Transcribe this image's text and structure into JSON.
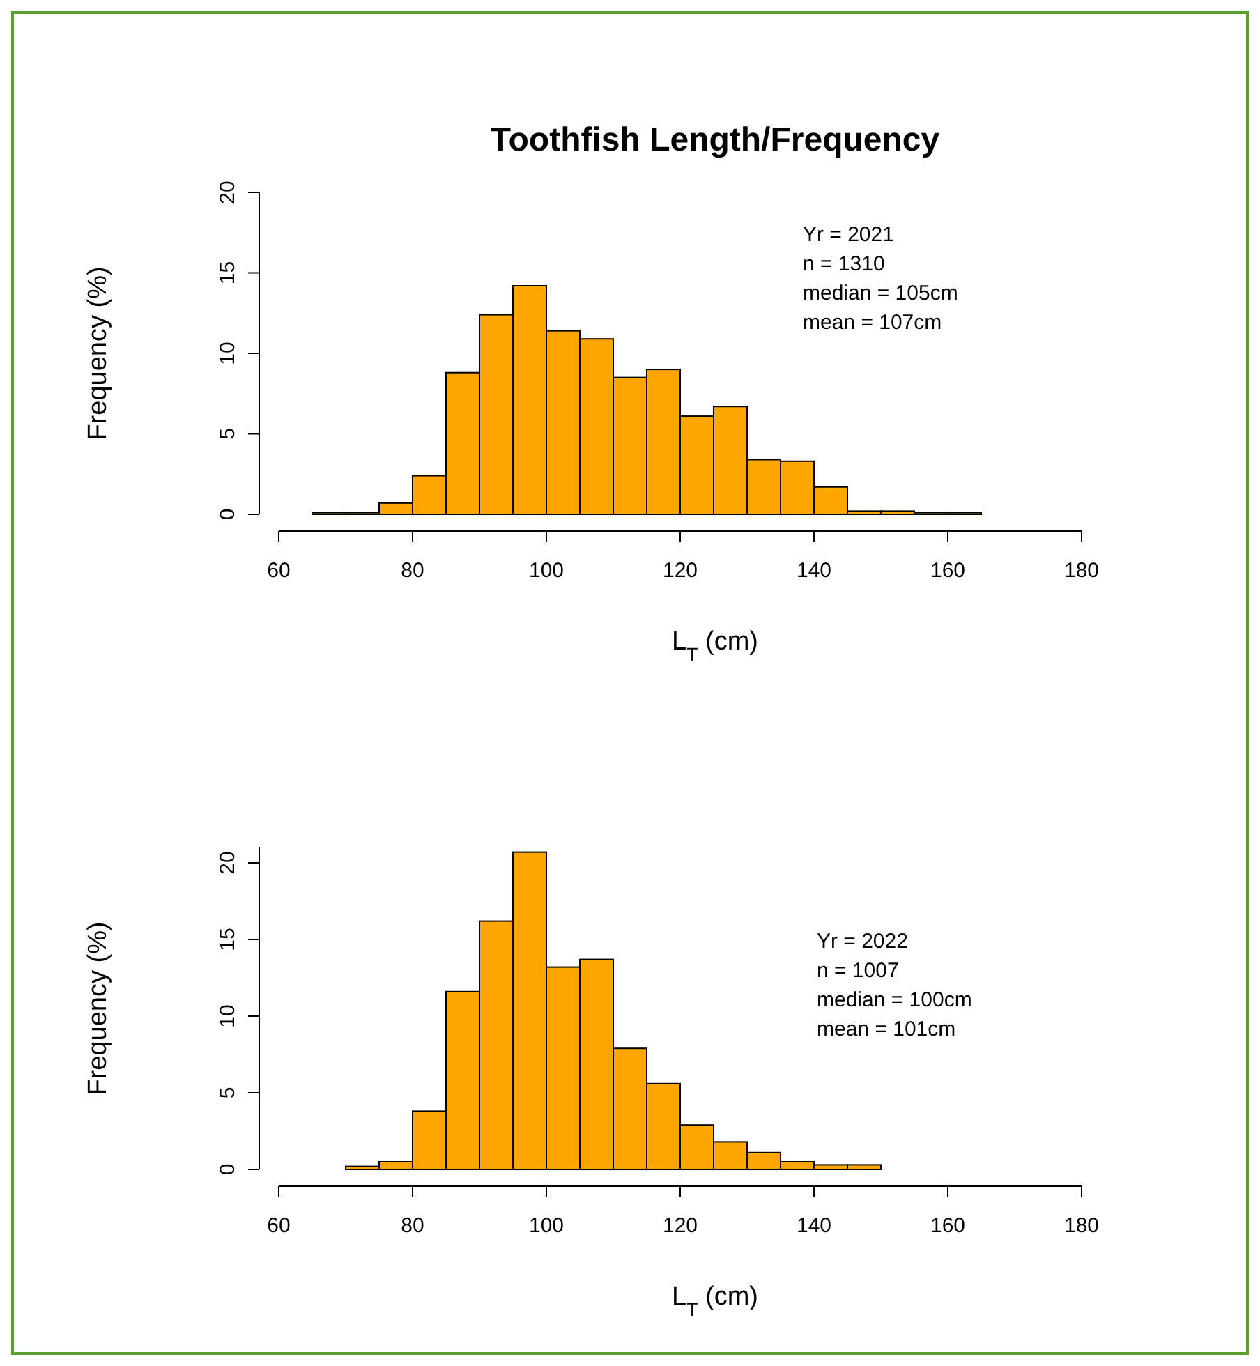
{
  "chart_data": [
    {
      "type": "histogram",
      "title": "Toothfish Length/Frequency",
      "xlabel": "L$_{T}$ (cm)",
      "ylabel": "Frequency (%)",
      "color": "#ffa500",
      "bins": [
        65,
        70,
        75,
        80,
        85,
        90,
        95,
        100,
        105,
        110,
        115,
        120,
        125,
        130,
        135,
        140,
        145,
        150,
        155,
        160,
        165
      ],
      "values": [
        0.1,
        0.1,
        0.7,
        2.4,
        8.8,
        12.4,
        14.2,
        11.4,
        10.9,
        8.5,
        9.0,
        6.1,
        6.7,
        3.4,
        3.3,
        1.7,
        0.2,
        0.2,
        0.1,
        0.1
      ],
      "xlim": [
        60,
        180
      ],
      "xticks": [
        60,
        80,
        100,
        120,
        140,
        160,
        180
      ],
      "ylim": [
        0,
        20
      ],
      "yticks": [
        0,
        5,
        10,
        15,
        20
      ],
      "annotations": [
        "Yr = 2021",
        "n = 1310",
        "median = 105cm",
        "mean = 107cm"
      ]
    },
    {
      "type": "histogram",
      "xlabel": "L$_{T}$ (cm)",
      "ylabel": "Frequency (%)",
      "color": "#ffa500",
      "bins": [
        70,
        75,
        80,
        85,
        90,
        95,
        100,
        105,
        110,
        115,
        120,
        125,
        130,
        135,
        140,
        145,
        150
      ],
      "values": [
        0.2,
        0.5,
        3.8,
        11.6,
        16.2,
        20.7,
        13.2,
        13.7,
        7.9,
        5.6,
        2.9,
        1.8,
        1.1,
        0.5,
        0.3,
        0.3
      ],
      "xlim": [
        60,
        180
      ],
      "xticks": [
        60,
        80,
        100,
        120,
        140,
        160,
        180
      ],
      "ylim": [
        0,
        21
      ],
      "yticks": [
        0,
        5,
        10,
        15,
        20
      ],
      "annotations": [
        "Yr = 2022",
        "n = 1007",
        "median = 100cm",
        "mean = 101cm"
      ]
    }
  ]
}
